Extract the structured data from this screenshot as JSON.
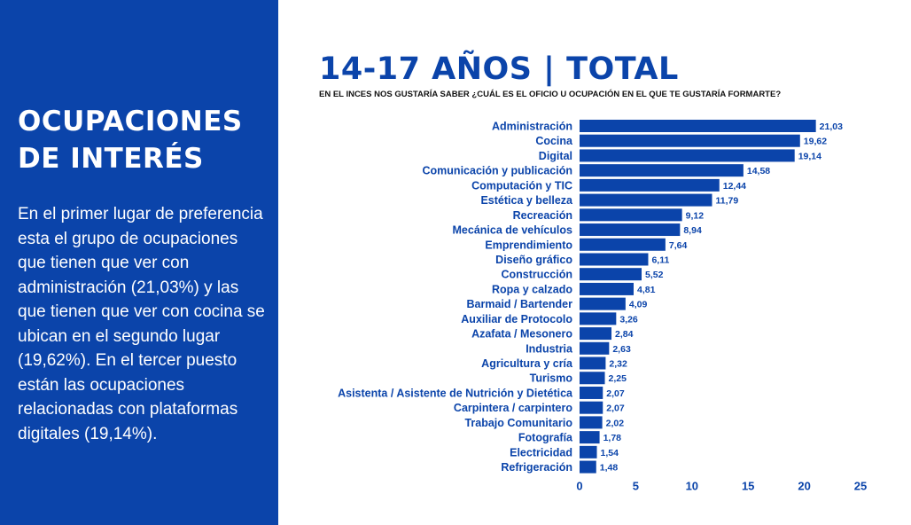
{
  "panel": {
    "title_line1": "OCUPACIONES",
    "title_line2": "DE INTERÉS",
    "body": "En el primer lugar de preferencia esta el grupo de ocupaciones que tienen que ver con administración (21,03%) y las que tienen que ver con cocina se ubican en el segundo lugar (19,62%). En el tercer puesto están las ocupaciones relacionadas con plataformas digitales (19,14%)."
  },
  "colors": {
    "accent": "#0b44aa",
    "bar": "#0b44aa",
    "background": "#ffffff",
    "text_dark": "#111111"
  },
  "chart_data": {
    "type": "bar",
    "orientation": "horizontal",
    "title": "14-17 AÑOS | TOTAL",
    "subtitle": "EN EL INCES NOS GUSTARÍA SABER ¿CUÁL ES EL OFICIO U OCUPACIÓN EN EL QUE TE GUSTARÍA FORMARTE?",
    "categories": [
      "Administración",
      "Cocina",
      "Digital",
      "Comunicación y publicación",
      "Computación y TIC",
      "Estética y belleza",
      "Recreación",
      "Mecánica de vehículos",
      "Emprendimiento",
      "Diseño gráfico",
      "Construcción",
      "Ropa y calzado",
      "Barmaid / Bartender",
      "Auxiliar de Protocolo",
      "Azafata / Mesonero",
      "Industria",
      "Agricultura y cría",
      "Turismo",
      "Asistenta / Asistente de Nutrición y Dietética",
      "Carpintera / carpintero",
      "Trabajo Comunitario",
      "Fotografía",
      "Electricidad",
      "Refrigeración"
    ],
    "values": [
      21.03,
      19.62,
      19.14,
      14.58,
      12.44,
      11.79,
      9.12,
      8.94,
      7.64,
      6.11,
      5.52,
      4.81,
      4.09,
      3.26,
      2.84,
      2.63,
      2.32,
      2.25,
      2.07,
      2.07,
      2.02,
      1.78,
      1.54,
      1.48
    ],
    "value_labels": [
      "21,03",
      "19,62",
      "19,14",
      "14,58",
      "12,44",
      "11,79",
      "9,12",
      "8,94",
      "7,64",
      "6,11",
      "5,52",
      "4,81",
      "4,09",
      "3,26",
      "2,84",
      "2,63",
      "2,32",
      "2,25",
      "2,07",
      "2,07",
      "2,02",
      "1,78",
      "1,54",
      "1,48"
    ],
    "x_ticks": [
      0,
      5,
      10,
      15,
      20,
      25
    ],
    "xlim": [
      0,
      25
    ],
    "grid": false,
    "legend": "none"
  }
}
